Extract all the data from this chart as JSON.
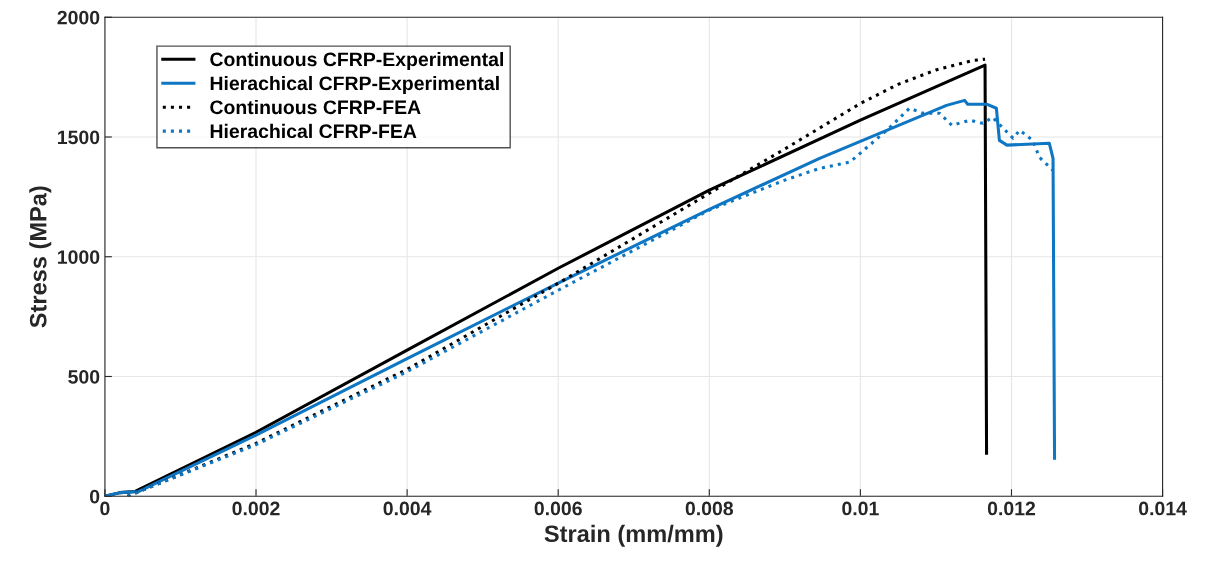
{
  "chart_data": {
    "type": "line",
    "xlabel": "Strain (mm/mm)",
    "ylabel": "Stress (MPa)",
    "xlim": [
      0,
      0.014
    ],
    "ylim": [
      0,
      2000
    ],
    "xticks": [
      0,
      0.002,
      0.004,
      0.006,
      0.008,
      {
        "value": 0.01,
        "label": "0.01"
      },
      0.012,
      0.014
    ],
    "yticks": [
      0,
      500,
      1000,
      1500,
      2000
    ],
    "grid": true,
    "legend": "top left",
    "series": [
      {
        "name": "Continuous CFRP-Experimental",
        "color": "#000000",
        "line_style": "solid",
        "x": [
          0,
          0.0002,
          0.0004,
          0.002,
          0.004,
          0.006,
          0.008,
          0.01,
          0.01165,
          0.01167
        ],
        "values": [
          0,
          15,
          20,
          267,
          610,
          952,
          1278,
          1570,
          1800,
          180
        ]
      },
      {
        "name": "Hierachical CFRP-Experimental",
        "color": "#0e76c2",
        "line_style": "solid",
        "x": [
          0,
          0.0002,
          0.00045,
          0.002,
          0.004,
          0.006,
          0.008,
          0.00946,
          0.01114,
          0.01138,
          0.01142,
          0.01167,
          0.0118,
          0.01184,
          0.01194,
          0.0125,
          0.01255,
          0.01257
        ],
        "values": [
          0,
          15,
          20,
          255,
          575,
          890,
          1198,
          1411,
          1632,
          1653,
          1637,
          1637,
          1620,
          1486,
          1466,
          1474,
          1411,
          159
        ]
      },
      {
        "name": "Continuous CFRP-FEA",
        "color": "#000000",
        "line_style": "dotted",
        "x": [
          0.0003,
          0.001,
          0.002,
          0.004,
          0.006,
          0.008,
          0.009,
          0.01,
          0.0105,
          0.011,
          0.0115,
          0.01165
        ],
        "values": [
          0,
          90,
          221,
          530,
          889,
          1265,
          1450,
          1640,
          1720,
          1780,
          1820,
          1825
        ]
      },
      {
        "name": "Hierachical CFRP-FEA",
        "color": "#0e76c2",
        "line_style": "dotted",
        "x": [
          0.0003,
          0.002,
          0.004,
          0.006,
          0.008,
          0.009,
          0.00946,
          0.00986,
          0.01035,
          0.01065,
          0.01083,
          0.01105,
          0.01121,
          0.01145,
          0.01162,
          0.01175,
          0.01202,
          0.01211,
          0.01228,
          0.01237,
          0.01255
        ],
        "values": [
          0,
          215,
          520,
          860,
          1195,
          1320,
          1369,
          1395,
          1528,
          1620,
          1599,
          1599,
          1549,
          1570,
          1557,
          1582,
          1495,
          1528,
          1486,
          1415,
          1361
        ]
      }
    ]
  }
}
